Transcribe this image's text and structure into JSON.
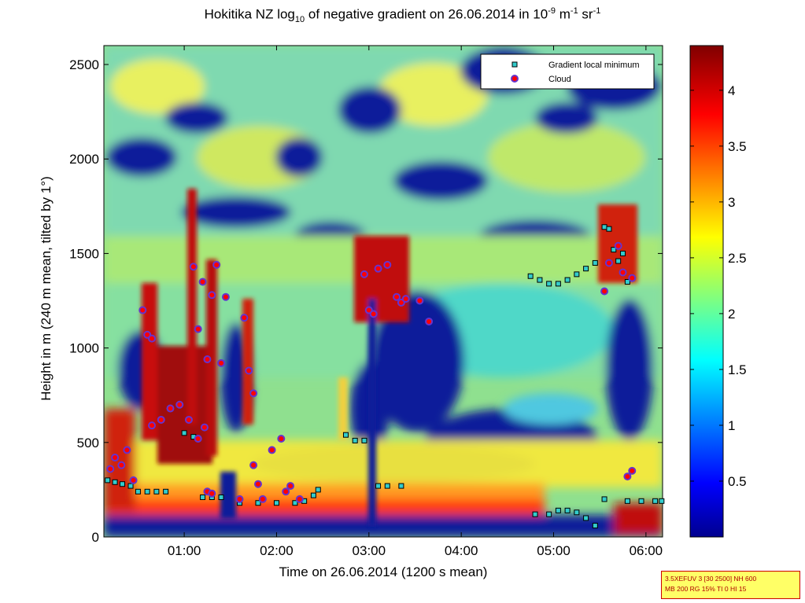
{
  "title": {
    "prefix": "Hokitika NZ log",
    "sub": "10",
    "middle": " of negative gradient on 26.06.2014 in 10",
    "sup1": "-9",
    "mid2": " m",
    "sup2": "-1",
    "mid3": " sr",
    "sup3": "-1"
  },
  "info_box": {
    "line1": "3.5XEFUV 3 [30 2500] NH 600",
    "line2": "MB 200 RG 15% TI 0 HI 15"
  },
  "colors": {
    "marker_minimum": "#33cccc",
    "marker_cloud": "#ff0000",
    "cloud_edge": "#6633cc",
    "colormap": "jet"
  },
  "chart_data": {
    "type": "heatmap",
    "title": "Hokitika NZ log10 of negative gradient on 26.06.2014 in 10-9 m-1 sr-1",
    "xlabel": "Time on 26.06.2014 (1200 s mean)",
    "ylabel": "Height in m (240 m mean, tilted by 1°)",
    "x_ticks": [
      "01:00",
      "02:00",
      "03:00",
      "04:00",
      "05:00",
      "06:00"
    ],
    "x_tick_values": [
      1.0,
      2.0,
      3.0,
      4.0,
      5.0,
      6.0
    ],
    "xlim": [
      0.13,
      6.18
    ],
    "y_ticks": [
      "0",
      "500",
      "1000",
      "1500",
      "2000",
      "2500"
    ],
    "y_tick_values": [
      0,
      500,
      1000,
      1500,
      2000,
      2500
    ],
    "ylim": [
      0,
      2600
    ],
    "colorbar": {
      "ticks": [
        "0.5",
        "1",
        "1.5",
        "2",
        "2.5",
        "3",
        "3.5",
        "4"
      ],
      "tick_values": [
        0.5,
        1,
        1.5,
        2,
        2.5,
        3,
        3.5,
        4
      ],
      "clim": [
        0,
        4.4
      ]
    },
    "legend": {
      "placement": "top-right",
      "entries": [
        "Gradient local minimum",
        "Cloud"
      ]
    },
    "grid": false,
    "series": [
      {
        "name": "Gradient local minimum",
        "marker": "square",
        "points": [
          [
            0.17,
            300
          ],
          [
            0.25,
            290
          ],
          [
            0.33,
            280
          ],
          [
            0.42,
            270
          ],
          [
            0.5,
            240
          ],
          [
            0.6,
            240
          ],
          [
            0.7,
            240
          ],
          [
            0.8,
            240
          ],
          [
            1.0,
            550
          ],
          [
            1.1,
            530
          ],
          [
            1.2,
            210
          ],
          [
            1.3,
            210
          ],
          [
            1.4,
            210
          ],
          [
            1.6,
            180
          ],
          [
            1.8,
            180
          ],
          [
            2.0,
            180
          ],
          [
            2.2,
            180
          ],
          [
            2.3,
            190
          ],
          [
            2.4,
            220
          ],
          [
            2.45,
            250
          ],
          [
            2.75,
            540
          ],
          [
            2.85,
            510
          ],
          [
            2.95,
            510
          ],
          [
            3.1,
            270
          ],
          [
            3.2,
            270
          ],
          [
            3.35,
            270
          ],
          [
            4.75,
            1380
          ],
          [
            4.85,
            1360
          ],
          [
            4.95,
            1340
          ],
          [
            5.05,
            1340
          ],
          [
            5.15,
            1360
          ],
          [
            5.25,
            1390
          ],
          [
            5.35,
            1420
          ],
          [
            5.45,
            1450
          ],
          [
            5.55,
            1640
          ],
          [
            5.6,
            1630
          ],
          [
            5.65,
            1520
          ],
          [
            5.7,
            1460
          ],
          [
            5.75,
            1500
          ],
          [
            5.8,
            1350
          ],
          [
            4.8,
            120
          ],
          [
            4.95,
            120
          ],
          [
            5.05,
            140
          ],
          [
            5.15,
            140
          ],
          [
            5.25,
            130
          ],
          [
            5.35,
            100
          ],
          [
            5.45,
            60
          ],
          [
            5.55,
            200
          ],
          [
            5.8,
            190
          ],
          [
            5.95,
            190
          ],
          [
            6.1,
            190
          ],
          [
            6.17,
            190
          ]
        ]
      },
      {
        "name": "Cloud",
        "marker": "circle",
        "points": [
          [
            0.2,
            360
          ],
          [
            0.25,
            420
          ],
          [
            0.32,
            380
          ],
          [
            0.38,
            460
          ],
          [
            0.45,
            300
          ],
          [
            0.6,
            1070
          ],
          [
            0.65,
            1050
          ],
          [
            0.55,
            1200
          ],
          [
            0.65,
            590
          ],
          [
            0.75,
            620
          ],
          [
            0.85,
            680
          ],
          [
            0.95,
            700
          ],
          [
            1.05,
            620
          ],
          [
            1.15,
            1100
          ],
          [
            1.1,
            1430
          ],
          [
            1.2,
            1350
          ],
          [
            1.25,
            940
          ],
          [
            1.15,
            520
          ],
          [
            1.22,
            580
          ],
          [
            1.3,
            1280
          ],
          [
            1.35,
            1440
          ],
          [
            1.4,
            920
          ],
          [
            1.45,
            1270
          ],
          [
            1.25,
            240
          ],
          [
            1.3,
            230
          ],
          [
            1.65,
            1160
          ],
          [
            1.7,
            880
          ],
          [
            1.75,
            760
          ],
          [
            1.8,
            280
          ],
          [
            1.75,
            380
          ],
          [
            1.6,
            200
          ],
          [
            1.85,
            200
          ],
          [
            1.95,
            460
          ],
          [
            2.05,
            520
          ],
          [
            2.1,
            240
          ],
          [
            2.15,
            270
          ],
          [
            2.25,
            200
          ],
          [
            2.95,
            1390
          ],
          [
            3.0,
            1200
          ],
          [
            3.05,
            1180
          ],
          [
            3.1,
            1420
          ],
          [
            3.2,
            1440
          ],
          [
            3.3,
            1270
          ],
          [
            3.35,
            1240
          ],
          [
            3.4,
            1260
          ],
          [
            3.55,
            1250
          ],
          [
            3.65,
            1140
          ],
          [
            5.55,
            1300
          ],
          [
            5.6,
            1450
          ],
          [
            5.7,
            1540
          ],
          [
            5.75,
            1400
          ],
          [
            5.85,
            1370
          ],
          [
            5.8,
            320
          ],
          [
            5.85,
            350
          ]
        ]
      }
    ]
  }
}
